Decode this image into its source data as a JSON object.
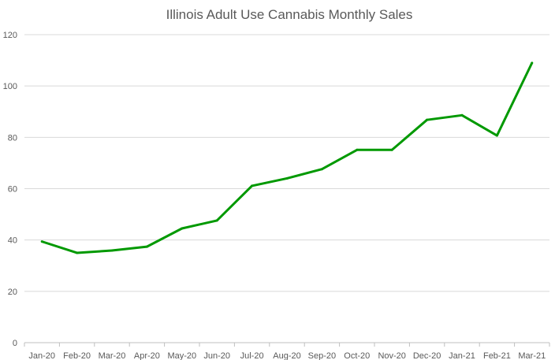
{
  "chart_data": {
    "type": "line",
    "title": "Illinois Adult Use Cannabis Monthly Sales",
    "xlabel": "",
    "ylabel": "",
    "ylim": [
      0,
      120
    ],
    "yticks": [
      "0",
      "20",
      "40",
      "60",
      "80",
      "100",
      "120"
    ],
    "grid": true,
    "legend": "none",
    "categories": [
      "Jan-20",
      "Feb-20",
      "Mar-20",
      "Apr-20",
      "May-20",
      "Jun-20",
      "Jul-20",
      "Aug-20",
      "Sep-20",
      "Oct-20",
      "Nov-20",
      "Dec-20",
      "Jan-21",
      "Feb-21",
      "Mar-21"
    ],
    "series": [
      {
        "name": "Monthly Sales",
        "color": "#009900",
        "values": [
          39.4,
          35.0,
          35.9,
          37.4,
          44.5,
          47.6,
          61.1,
          64.0,
          67.6,
          75.1,
          75.1,
          86.8,
          88.6,
          80.7,
          109.0
        ]
      }
    ]
  }
}
